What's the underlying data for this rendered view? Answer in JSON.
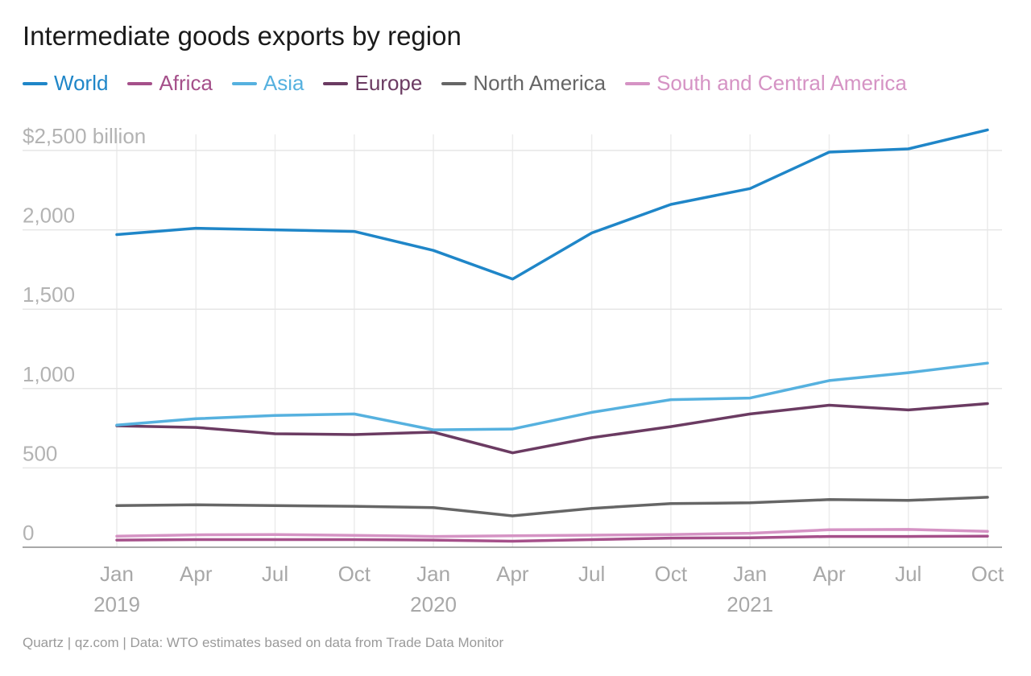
{
  "chart_data": {
    "type": "line",
    "title": "Intermediate goods exports by region",
    "x": [
      "2019-Q1",
      "2019-Q2",
      "2019-Q3",
      "2019-Q4",
      "2020-Q1",
      "2020-Q2",
      "2020-Q3",
      "2020-Q4",
      "2021-Q1",
      "2021-Q2",
      "2021-Q3",
      "2021-Q4"
    ],
    "x_tick_labels": [
      "Jan",
      "Apr",
      "Jul",
      "Oct",
      "Jan",
      "Apr",
      "Jul",
      "Oct",
      "Jan",
      "Apr",
      "Jul",
      "Oct"
    ],
    "x_year_labels": [
      {
        "at": "2019-Q1",
        "label": "2019"
      },
      {
        "at": "2020-Q1",
        "label": "2020"
      },
      {
        "at": "2021-Q1",
        "label": "2021"
      }
    ],
    "ylim": [
      0,
      2500
    ],
    "y_ticks": [
      0,
      500,
      1000,
      1500,
      2000,
      2500
    ],
    "y_tick_labels": [
      "0",
      "500",
      "1,000",
      "1,500",
      "2,000",
      "$2,500 billion"
    ],
    "grid": true,
    "legend_position": "top-left",
    "series": [
      {
        "name": "World",
        "color": "#1f86c8",
        "values": [
          1970,
          2010,
          2000,
          1990,
          1870,
          1690,
          1980,
          2160,
          2260,
          2490,
          2510,
          2630
        ]
      },
      {
        "name": "Africa",
        "color": "#a5508a",
        "values": [
          45,
          48,
          48,
          48,
          45,
          38,
          48,
          58,
          60,
          68,
          68,
          70
        ]
      },
      {
        "name": "Asia",
        "color": "#56b1df",
        "values": [
          770,
          810,
          830,
          840,
          740,
          745,
          850,
          930,
          940,
          1050,
          1100,
          1160
        ]
      },
      {
        "name": "Europe",
        "color": "#6b3b62",
        "values": [
          765,
          755,
          715,
          710,
          725,
          595,
          690,
          760,
          840,
          895,
          865,
          905
        ]
      },
      {
        "name": "North America",
        "color": "#666666",
        "values": [
          262,
          268,
          262,
          258,
          250,
          198,
          245,
          275,
          280,
          300,
          295,
          315
        ]
      },
      {
        "name": "South and Central America",
        "color": "#d593c4",
        "values": [
          70,
          78,
          80,
          75,
          68,
          72,
          76,
          80,
          88,
          110,
          112,
          100
        ]
      }
    ]
  },
  "source": "Quartz | qz.com | Data: WTO estimates based on data from Trade Data Monitor"
}
